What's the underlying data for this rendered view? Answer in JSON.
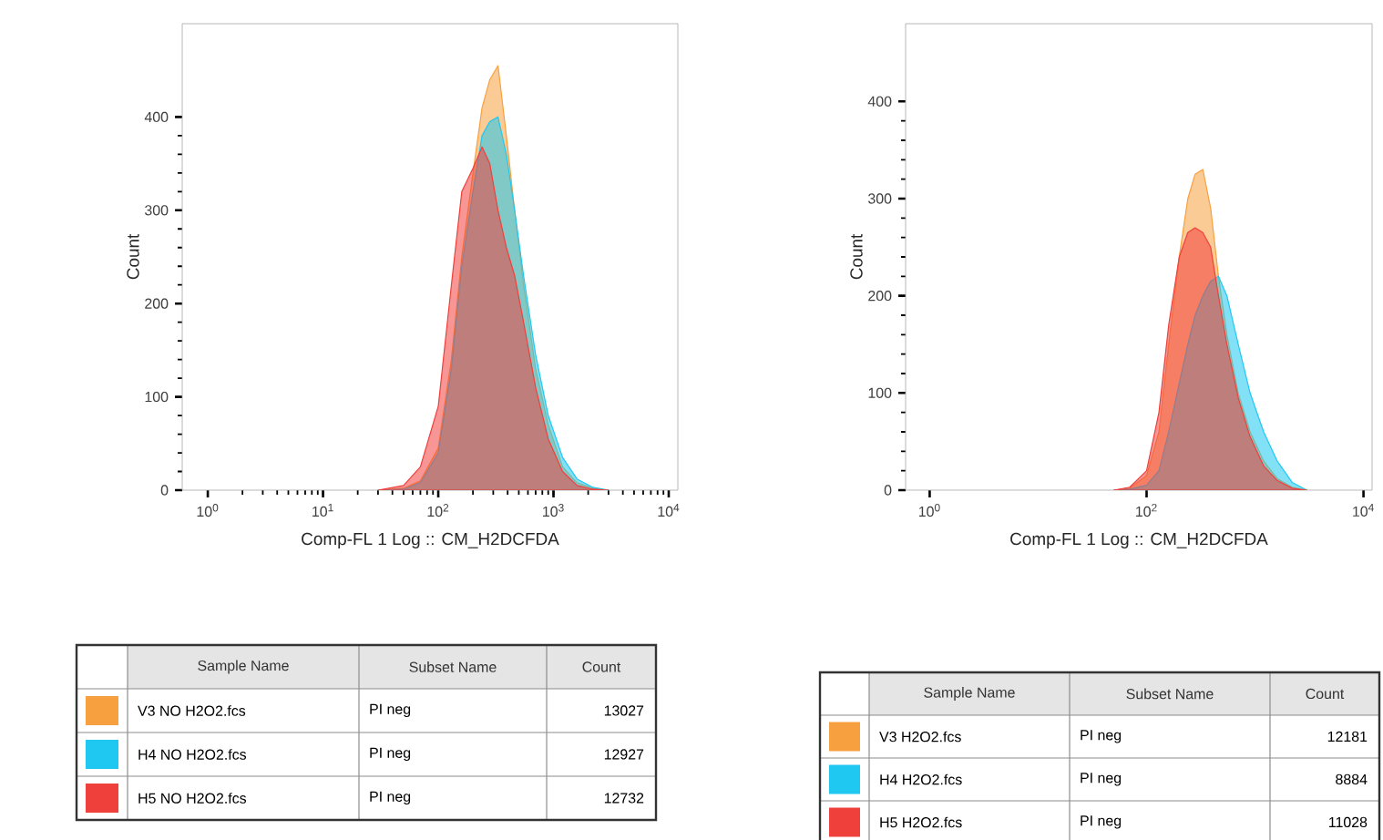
{
  "chart_data": [
    {
      "type": "area",
      "log": "x",
      "xlabel": "Comp-FL 1 Log :: CM_H2DCFDA",
      "ylabel": "Count",
      "xlim": [
        0.6,
        12000
      ],
      "ylim": [
        0,
        500
      ],
      "xticks": [
        {
          "value": 1,
          "label": "10$^{0}$"
        },
        {
          "value": 10,
          "label": "10$^{1}$"
        },
        {
          "value": 100,
          "label": "10$^{2}$"
        },
        {
          "value": 1000,
          "label": "10$^{3}$"
        },
        {
          "value": 10000,
          "label": "10$^{4}$"
        }
      ],
      "yticks": [
        0,
        100,
        200,
        300,
        400
      ],
      "legend": "bottom",
      "annotations": [
        "Sample Name",
        "Subset Name",
        "Count",
        "PI neg",
        "13027",
        "PI neg",
        "12927",
        "PI neg",
        "12732"
      ],
      "x": [
        30,
        50,
        70,
        100,
        130,
        160,
        200,
        240,
        280,
        330,
        390,
        460,
        550,
        700,
        900,
        1200,
        1600,
        2200,
        3000
      ],
      "series": [
        {
          "name": "V3 NO H2O2.fcs",
          "color": "#f7a040",
          "values": [
            0,
            2,
            10,
            45,
            140,
            250,
            340,
            410,
            440,
            455,
            380,
            300,
            220,
            130,
            70,
            25,
            8,
            2,
            0
          ]
        },
        {
          "name": "H4 NO H2O2.fcs",
          "color": "#1ec8f0",
          "values": [
            0,
            1,
            8,
            40,
            130,
            240,
            320,
            380,
            395,
            400,
            360,
            300,
            230,
            145,
            80,
            35,
            12,
            3,
            0
          ]
        },
        {
          "name": "H5 NO H2O2.fcs",
          "color": "#f0403c",
          "values": [
            0,
            5,
            25,
            90,
            220,
            320,
            345,
            368,
            350,
            300,
            260,
            230,
            180,
            110,
            55,
            20,
            5,
            1,
            0
          ]
        }
      ]
    },
    {
      "type": "area",
      "log": "x",
      "xlabel": "Comp-FL 1 Log :: CM_H2DCFDA",
      "ylabel": "Count",
      "xlim": [
        0.6,
        12000
      ],
      "ylim": [
        0,
        480
      ],
      "xticks": [
        {
          "value": 1,
          "label": "10$^{0}$"
        },
        {
          "value": 100,
          "label": "10$^{2}$"
        },
        {
          "value": 10000,
          "label": "10$^{4}$"
        }
      ],
      "yticks": [
        0,
        100,
        200,
        300,
        400
      ],
      "legend": "bottom",
      "annotations": [
        "Sample Name",
        "Subset Name",
        "Count",
        "PI neg",
        "12181",
        "PI neg",
        "8884",
        "PI neg",
        "11028"
      ],
      "x": [
        50,
        70,
        100,
        130,
        160,
        200,
        240,
        280,
        330,
        390,
        460,
        550,
        700,
        900,
        1200,
        1600,
        2200,
        3000
      ],
      "series": [
        {
          "name": "V3 H2O2.fcs",
          "color": "#f7a040",
          "values": [
            0,
            2,
            15,
            60,
            150,
            240,
            300,
            325,
            330,
            290,
            220,
            160,
            100,
            60,
            30,
            12,
            3,
            0
          ]
        },
        {
          "name": "H4 H2O2.fcs",
          "color": "#1ec8f0",
          "values": [
            0,
            1,
            5,
            20,
            60,
            110,
            150,
            180,
            200,
            215,
            220,
            200,
            150,
            100,
            60,
            30,
            8,
            0
          ]
        },
        {
          "name": "H5 H2O2.fcs",
          "color": "#f0403c",
          "values": [
            0,
            3,
            20,
            80,
            170,
            240,
            265,
            270,
            265,
            250,
            200,
            150,
            95,
            55,
            25,
            10,
            2,
            0
          ]
        }
      ]
    }
  ]
}
